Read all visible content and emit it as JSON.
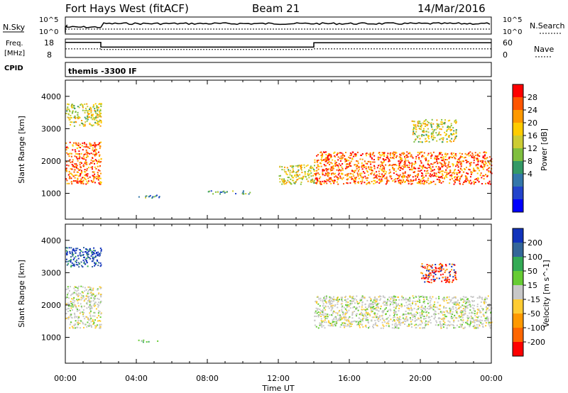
{
  "header": {
    "station": "Fort Hays West (fitACF)",
    "beam": "Beam 21",
    "date": "14/Mar/2016"
  },
  "status_panels": {
    "nsky": {
      "label": "N.Sky",
      "right_label": "N.Search",
      "left_ticks": [
        "10^5",
        "10^0"
      ],
      "right_ticks": [
        "10^5",
        "10^0"
      ]
    },
    "freq": {
      "label_line1": "Freq.",
      "label_line2": "[MHz]",
      "right_label": "Nave",
      "left_ticks": [
        "18",
        "8"
      ],
      "right_ticks": [
        "60",
        "0"
      ],
      "segments": [
        {
          "start_h": 0.0,
          "end_h": 2.0,
          "freq_mhz": 16.2,
          "nave": 28
        },
        {
          "start_h": 2.0,
          "end_h": 14.0,
          "freq_mhz": 13.6,
          "nave": 26
        },
        {
          "start_h": 14.0,
          "end_h": 24.0,
          "freq_mhz": 16.0,
          "nave": 28
        }
      ]
    },
    "cpid": {
      "label": "CPID",
      "value": "themis -3300 IF"
    }
  },
  "chart_data": [
    {
      "type": "heatmap",
      "panel": "power",
      "xlabel": "Time UT",
      "ylabel": "Slant Range [km]",
      "colorbar_label": "Power [dB]",
      "xlim_hours": [
        0,
        24
      ],
      "ylim": [
        200,
        4500
      ],
      "x_ticks": [
        "00:00",
        "04:00",
        "08:00",
        "12:00",
        "16:00",
        "20:00",
        "00:00"
      ],
      "y_ticks": [
        1000,
        2000,
        3000,
        4000
      ],
      "colorbar_ticks": [
        "28",
        "24",
        "20",
        "16",
        "12",
        "8",
        "4"
      ],
      "colorbar_colors": [
        "#ff0000",
        "#ff5500",
        "#ff9900",
        "#ffcc00",
        "#cccc33",
        "#7fbf3f",
        "#339966",
        "#3377aa",
        "#2244cc",
        "#0000ff"
      ],
      "echo_regions": [
        {
          "t0": 0.0,
          "t1": 2.0,
          "r0": 1300,
          "r1": 2600,
          "level": "strong"
        },
        {
          "t0": 0.0,
          "t1": 2.0,
          "r0": 3100,
          "r1": 3800,
          "level": "medium"
        },
        {
          "t0": 4.0,
          "t1": 5.3,
          "r0": 870,
          "r1": 960,
          "level": "weak"
        },
        {
          "t0": 8.0,
          "t1": 10.5,
          "r0": 1000,
          "r1": 1100,
          "level": "weak"
        },
        {
          "t0": 12.0,
          "t1": 14.0,
          "r0": 1300,
          "r1": 1900,
          "level": "medium"
        },
        {
          "t0": 14.0,
          "t1": 24.0,
          "r0": 1300,
          "r1": 2300,
          "level": "strong"
        },
        {
          "t0": 19.5,
          "t1": 22.0,
          "r0": 2600,
          "r1": 3300,
          "level": "medium"
        }
      ]
    },
    {
      "type": "heatmap",
      "panel": "velocity",
      "xlabel": "Time UT",
      "ylabel": "Slant Range [km]",
      "colorbar_label": "Velocity [m s^-1]",
      "xlim_hours": [
        0,
        24
      ],
      "ylim": [
        200,
        4500
      ],
      "x_ticks": [
        "00:00",
        "04:00",
        "08:00",
        "12:00",
        "16:00",
        "20:00",
        "00:00"
      ],
      "y_ticks": [
        1000,
        2000,
        3000,
        4000
      ],
      "colorbar_ticks": [
        "200",
        "100",
        "50",
        "15",
        "-15",
        "-50",
        "-100",
        "-200"
      ],
      "colorbar_colors": [
        "#1133bb",
        "#336699",
        "#33aa55",
        "#66cc33",
        "#c8c8c8",
        "#ffcc33",
        "#ff9900",
        "#ff6600",
        "#ff0000"
      ],
      "echo_regions": [
        {
          "t0": 0.0,
          "t1": 2.0,
          "r0": 1300,
          "r1": 2600,
          "level": "ground"
        },
        {
          "t0": 0.0,
          "t1": 2.0,
          "r0": 3200,
          "r1": 3800,
          "level": "blue"
        },
        {
          "t0": 4.0,
          "t1": 5.3,
          "r0": 870,
          "r1": 940,
          "level": "green"
        },
        {
          "t0": 14.0,
          "t1": 24.0,
          "r0": 1300,
          "r1": 2300,
          "level": "ground"
        },
        {
          "t0": 20.0,
          "t1": 22.0,
          "r0": 2700,
          "r1": 3300,
          "level": "red"
        }
      ]
    }
  ]
}
